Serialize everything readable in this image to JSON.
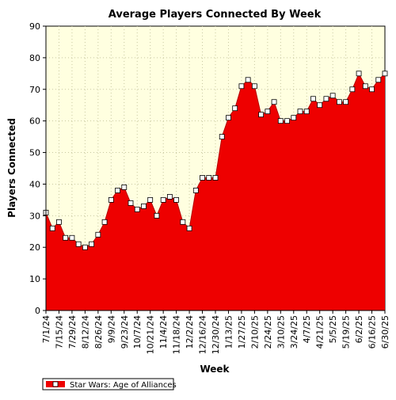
{
  "chart_data": {
    "type": "area",
    "title": "Average Players Connected By Week",
    "xlabel": "Week",
    "ylabel": "Players Connected",
    "ylim": [
      0,
      90
    ],
    "yticks": [
      0,
      10,
      20,
      30,
      40,
      50,
      60,
      70,
      80,
      90
    ],
    "grid": true,
    "legend_position": "bottom-left",
    "colors": {
      "background": "#ffffff",
      "plot_background": "#ffffe0",
      "grid": "#c8c8a0",
      "area_fill": "#ee0000",
      "line": "#b40000",
      "marker_fill": "#ffffff",
      "marker_stroke": "#000000"
    },
    "x_tick_labels": [
      "7/1/24",
      "7/15/24",
      "7/29/24",
      "8/12/24",
      "8/26/24",
      "9/9/24",
      "9/23/24",
      "10/7/24",
      "10/21/24",
      "11/4/24",
      "11/18/24",
      "12/2/24",
      "12/16/24",
      "12/30/24",
      "1/13/25",
      "1/27/25",
      "2/10/25",
      "2/24/25",
      "3/10/25",
      "3/24/25",
      "4/7/25",
      "4/21/25",
      "5/5/25",
      "5/19/25",
      "6/2/25",
      "6/16/25",
      "6/30/25"
    ],
    "series": [
      {
        "name": "Star Wars: Age of Alliances",
        "x": [
          "7/1/24",
          "7/8/24",
          "7/15/24",
          "7/22/24",
          "7/29/24",
          "8/5/24",
          "8/12/24",
          "8/19/24",
          "8/26/24",
          "9/2/24",
          "9/9/24",
          "9/16/24",
          "9/23/24",
          "9/30/24",
          "10/7/24",
          "10/14/24",
          "10/21/24",
          "10/28/24",
          "11/4/24",
          "11/11/24",
          "11/18/24",
          "11/25/24",
          "12/2/24",
          "12/9/24",
          "12/16/24",
          "12/23/24",
          "12/30/24",
          "1/6/25",
          "1/13/25",
          "1/20/25",
          "1/27/25",
          "2/3/25",
          "2/10/25",
          "2/17/25",
          "2/24/25",
          "3/3/25",
          "3/10/25",
          "3/17/25",
          "3/24/25",
          "3/31/25",
          "4/7/25",
          "4/14/25",
          "4/21/25",
          "4/28/25",
          "5/5/25",
          "5/12/25",
          "5/19/25",
          "5/26/25",
          "6/2/25",
          "6/9/25",
          "6/16/25",
          "6/23/25",
          "6/30/25"
        ],
        "values": [
          31,
          26,
          28,
          23,
          23,
          21,
          20,
          21,
          24,
          28,
          35,
          38,
          39,
          34,
          32,
          33,
          35,
          30,
          35,
          36,
          35,
          28,
          26,
          38,
          42,
          42,
          42,
          55,
          61,
          64,
          71,
          73,
          71,
          62,
          63,
          66,
          60,
          60,
          61,
          63,
          63,
          67,
          65,
          67,
          68,
          66,
          66,
          70,
          75,
          71,
          70,
          73,
          75
        ]
      }
    ]
  }
}
